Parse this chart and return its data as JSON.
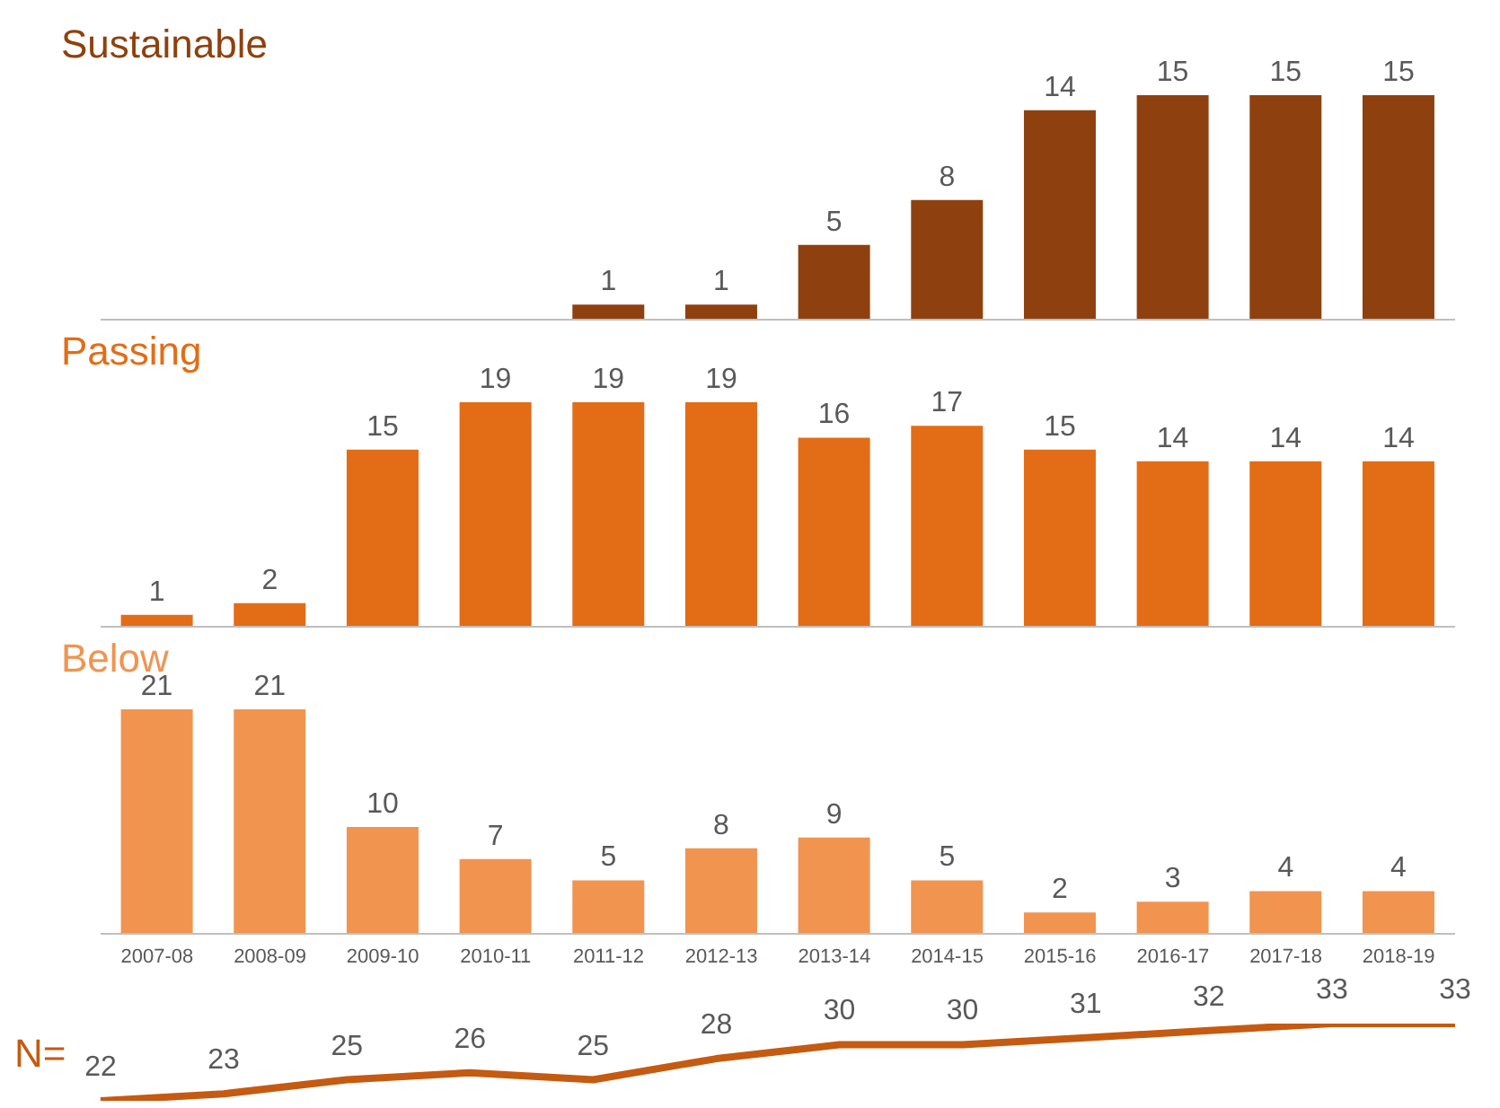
{
  "chart_data": [
    {
      "type": "bar",
      "title": "Sustainable",
      "categories": [
        "2007-08",
        "2008-09",
        "2009-10",
        "2010-11",
        "2011-12",
        "2012-13",
        "2013-14",
        "2014-15",
        "2015-16",
        "2016-17",
        "2017-18",
        "2018-19"
      ],
      "values": [
        null,
        null,
        null,
        null,
        1,
        1,
        5,
        8,
        14,
        15,
        15,
        15
      ],
      "color": "#8e410e",
      "data_labels": true,
      "tick_labels": false
    },
    {
      "type": "bar",
      "title": "Passing",
      "categories": [
        "2007-08",
        "2008-09",
        "2009-10",
        "2010-11",
        "2011-12",
        "2012-13",
        "2013-14",
        "2014-15",
        "2015-16",
        "2016-17",
        "2017-18",
        "2018-19"
      ],
      "values": [
        1,
        2,
        15,
        19,
        19,
        19,
        16,
        17,
        15,
        14,
        14,
        14
      ],
      "color": "#e36c17",
      "data_labels": true,
      "tick_labels": false
    },
    {
      "type": "bar",
      "title": "Below",
      "categories": [
        "2007-08",
        "2008-09",
        "2009-10",
        "2010-11",
        "2011-12",
        "2012-13",
        "2013-14",
        "2014-15",
        "2015-16",
        "2016-17",
        "2017-18",
        "2018-19"
      ],
      "values": [
        21,
        21,
        10,
        7,
        5,
        8,
        9,
        5,
        2,
        3,
        4,
        4
      ],
      "color": "#f09450",
      "data_labels": true,
      "tick_labels": "x"
    },
    {
      "type": "line",
      "title": "N=",
      "categories": [
        null,
        null,
        null,
        null,
        null,
        null,
        null,
        null,
        null,
        null,
        null,
        null
      ],
      "values": [
        22,
        23,
        25,
        26,
        25,
        28,
        30,
        30,
        31,
        32,
        33,
        33
      ],
      "color": "#c55a11",
      "data_labels": true,
      "tick_labels": false
    }
  ]
}
